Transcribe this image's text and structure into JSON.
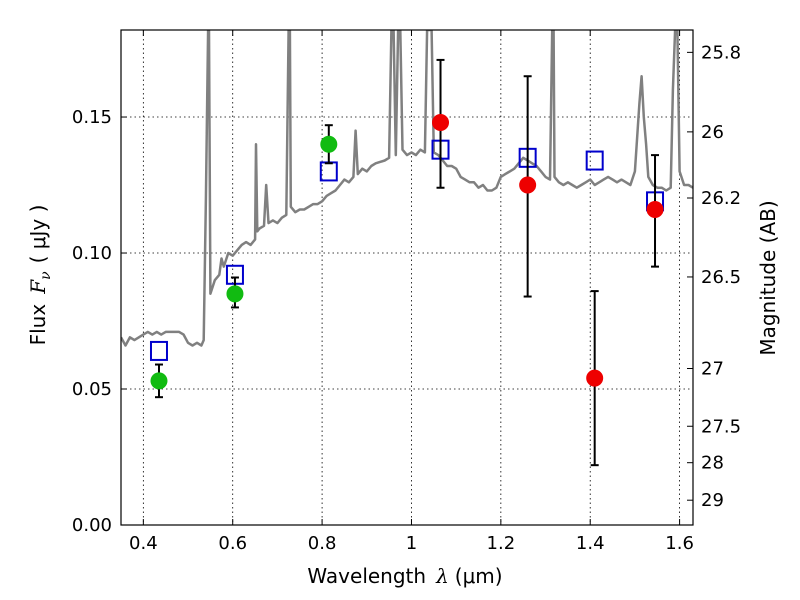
{
  "chart_data": {
    "type": "scatter",
    "xlabel_text": "Wavelength",
    "xlabel_math": "λ",
    "xlabel_unit": "(μm)",
    "ylabel_text": "Flux",
    "ylabel_math": "F",
    "ylabel_sub": "ν",
    "ylabel_unit": "( μJy )",
    "y2label": "Magnitude (AB)",
    "xlim": [
      0.35,
      1.63
    ],
    "ylim": [
      0.0,
      0.182
    ],
    "x_ticks": [
      {
        "value": 0.4,
        "label": "0.4"
      },
      {
        "value": 0.6,
        "label": "0.6"
      },
      {
        "value": 0.8,
        "label": "0.8"
      },
      {
        "value": 1.0,
        "label": "1"
      },
      {
        "value": 1.2,
        "label": "1.2"
      },
      {
        "value": 1.4,
        "label": "1.4"
      },
      {
        "value": 1.6,
        "label": "1.6"
      }
    ],
    "y_ticks": [
      {
        "value": 0.0,
        "label": "0.00"
      },
      {
        "value": 0.05,
        "label": "0.05"
      },
      {
        "value": 0.1,
        "label": "0.10"
      },
      {
        "value": 0.15,
        "label": "0.15"
      }
    ],
    "mag_ticks": [
      {
        "mag": 25.8,
        "label": "25.8"
      },
      {
        "mag": 26.0,
        "label": "26"
      },
      {
        "mag": 26.2,
        "label": "26.2"
      },
      {
        "mag": 26.5,
        "label": "26.5"
      },
      {
        "mag": 27.0,
        "label": "27"
      },
      {
        "mag": 27.5,
        "label": "27.5"
      },
      {
        "mag": 28.0,
        "label": "28"
      },
      {
        "mag": 29.0,
        "label": "29"
      }
    ],
    "grid": true,
    "colors": {
      "spectrum": "#808080",
      "model": "#0000cc",
      "green_obs": "#11bb11",
      "red_obs": "#ee0000",
      "errorbar": "#000000"
    },
    "series": [
      {
        "kind": "spectrum",
        "points": [
          [
            0.35,
            0.069
          ],
          [
            0.36,
            0.066
          ],
          [
            0.37,
            0.069
          ],
          [
            0.38,
            0.068
          ],
          [
            0.39,
            0.069
          ],
          [
            0.4,
            0.07
          ],
          [
            0.41,
            0.071
          ],
          [
            0.42,
            0.07
          ],
          [
            0.43,
            0.071
          ],
          [
            0.44,
            0.07
          ],
          [
            0.45,
            0.071
          ],
          [
            0.46,
            0.071
          ],
          [
            0.47,
            0.071
          ],
          [
            0.48,
            0.071
          ],
          [
            0.49,
            0.07
          ],
          [
            0.5,
            0.067
          ],
          [
            0.51,
            0.066
          ],
          [
            0.52,
            0.067
          ],
          [
            0.53,
            0.066
          ],
          [
            0.535,
            0.068
          ],
          [
            0.54,
            0.12
          ],
          [
            0.545,
            0.182
          ],
          [
            0.547,
            0.182
          ],
          [
            0.55,
            0.085
          ],
          [
            0.56,
            0.09
          ],
          [
            0.57,
            0.092
          ],
          [
            0.575,
            0.098
          ],
          [
            0.58,
            0.095
          ],
          [
            0.59,
            0.1
          ],
          [
            0.6,
            0.099
          ],
          [
            0.61,
            0.101
          ],
          [
            0.62,
            0.103
          ],
          [
            0.63,
            0.104
          ],
          [
            0.64,
            0.103
          ],
          [
            0.65,
            0.105
          ],
          [
            0.652,
            0.14
          ],
          [
            0.655,
            0.108
          ],
          [
            0.66,
            0.109
          ],
          [
            0.67,
            0.11
          ],
          [
            0.675,
            0.125
          ],
          [
            0.68,
            0.111
          ],
          [
            0.69,
            0.112
          ],
          [
            0.7,
            0.111
          ],
          [
            0.71,
            0.113
          ],
          [
            0.72,
            0.114
          ],
          [
            0.725,
            0.182
          ],
          [
            0.728,
            0.182
          ],
          [
            0.73,
            0.117
          ],
          [
            0.74,
            0.115
          ],
          [
            0.75,
            0.116
          ],
          [
            0.76,
            0.116
          ],
          [
            0.77,
            0.117
          ],
          [
            0.78,
            0.118
          ],
          [
            0.79,
            0.118
          ],
          [
            0.8,
            0.119
          ],
          [
            0.81,
            0.121
          ],
          [
            0.82,
            0.122
          ],
          [
            0.83,
            0.123
          ],
          [
            0.84,
            0.125
          ],
          [
            0.85,
            0.127
          ],
          [
            0.86,
            0.126
          ],
          [
            0.87,
            0.128
          ],
          [
            0.875,
            0.145
          ],
          [
            0.88,
            0.129
          ],
          [
            0.89,
            0.131
          ],
          [
            0.9,
            0.13
          ],
          [
            0.91,
            0.132
          ],
          [
            0.92,
            0.133
          ],
          [
            0.94,
            0.134
          ],
          [
            0.95,
            0.135
          ],
          [
            0.955,
            0.182
          ],
          [
            0.96,
            0.182
          ],
          [
            0.965,
            0.136
          ],
          [
            0.97,
            0.182
          ],
          [
            0.975,
            0.182
          ],
          [
            0.98,
            0.138
          ],
          [
            0.99,
            0.136
          ],
          [
            1.0,
            0.137
          ],
          [
            1.01,
            0.136
          ],
          [
            1.02,
            0.138
          ],
          [
            1.03,
            0.137
          ],
          [
            1.035,
            0.182
          ],
          [
            1.045,
            0.182
          ],
          [
            1.05,
            0.137
          ],
          [
            1.06,
            0.136
          ],
          [
            1.07,
            0.134
          ],
          [
            1.08,
            0.132
          ],
          [
            1.09,
            0.132
          ],
          [
            1.1,
            0.131
          ],
          [
            1.11,
            0.128
          ],
          [
            1.12,
            0.127
          ],
          [
            1.13,
            0.126
          ],
          [
            1.14,
            0.126
          ],
          [
            1.15,
            0.124
          ],
          [
            1.16,
            0.125
          ],
          [
            1.17,
            0.123
          ],
          [
            1.18,
            0.123
          ],
          [
            1.19,
            0.124
          ],
          [
            1.2,
            0.128
          ],
          [
            1.21,
            0.129
          ],
          [
            1.22,
            0.13
          ],
          [
            1.23,
            0.131
          ],
          [
            1.24,
            0.133
          ],
          [
            1.25,
            0.135
          ],
          [
            1.26,
            0.134
          ],
          [
            1.27,
            0.133
          ],
          [
            1.28,
            0.132
          ],
          [
            1.29,
            0.13
          ],
          [
            1.3,
            0.128
          ],
          [
            1.31,
            0.127
          ],
          [
            1.315,
            0.182
          ],
          [
            1.318,
            0.182
          ],
          [
            1.32,
            0.128
          ],
          [
            1.33,
            0.126
          ],
          [
            1.34,
            0.125
          ],
          [
            1.35,
            0.126
          ],
          [
            1.36,
            0.125
          ],
          [
            1.37,
            0.124
          ],
          [
            1.38,
            0.125
          ],
          [
            1.39,
            0.126
          ],
          [
            1.4,
            0.127
          ],
          [
            1.41,
            0.125
          ],
          [
            1.42,
            0.126
          ],
          [
            1.43,
            0.127
          ],
          [
            1.44,
            0.128
          ],
          [
            1.45,
            0.127
          ],
          [
            1.46,
            0.126
          ],
          [
            1.47,
            0.127
          ],
          [
            1.48,
            0.126
          ],
          [
            1.49,
            0.125
          ],
          [
            1.5,
            0.13
          ],
          [
            1.51,
            0.155
          ],
          [
            1.515,
            0.165
          ],
          [
            1.52,
            0.15
          ],
          [
            1.525,
            0.14
          ],
          [
            1.53,
            0.128
          ],
          [
            1.54,
            0.125
          ],
          [
            1.55,
            0.124
          ],
          [
            1.56,
            0.124
          ],
          [
            1.57,
            0.123
          ],
          [
            1.58,
            0.124
          ],
          [
            1.585,
            0.16
          ],
          [
            1.59,
            0.182
          ],
          [
            1.595,
            0.182
          ],
          [
            1.6,
            0.13
          ],
          [
            1.61,
            0.125
          ],
          [
            1.62,
            0.125
          ],
          [
            1.63,
            0.124
          ]
        ]
      },
      {
        "kind": "model",
        "marker": "open-square",
        "points": [
          [
            0.435,
            0.064
          ],
          [
            0.605,
            0.092
          ],
          [
            0.815,
            0.13
          ],
          [
            1.065,
            0.138
          ],
          [
            1.26,
            0.135
          ],
          [
            1.41,
            0.134
          ],
          [
            1.545,
            0.119
          ]
        ]
      },
      {
        "kind": "observed",
        "marker": "filled-circle",
        "color_key": "green_obs",
        "points": [
          {
            "x": 0.435,
            "y": 0.053,
            "lo": 0.047,
            "hi": 0.059
          },
          {
            "x": 0.605,
            "y": 0.085,
            "lo": 0.08,
            "hi": 0.091
          },
          {
            "x": 0.815,
            "y": 0.14,
            "lo": 0.133,
            "hi": 0.147
          }
        ]
      },
      {
        "kind": "observed",
        "marker": "filled-circle",
        "color_key": "red_obs",
        "points": [
          {
            "x": 1.065,
            "y": 0.148,
            "lo": 0.124,
            "hi": 0.171
          },
          {
            "x": 1.26,
            "y": 0.125,
            "lo": 0.084,
            "hi": 0.165
          },
          {
            "x": 1.41,
            "y": 0.054,
            "lo": 0.022,
            "hi": 0.086
          },
          {
            "x": 1.545,
            "y": 0.116,
            "lo": 0.095,
            "hi": 0.136
          }
        ]
      }
    ]
  }
}
